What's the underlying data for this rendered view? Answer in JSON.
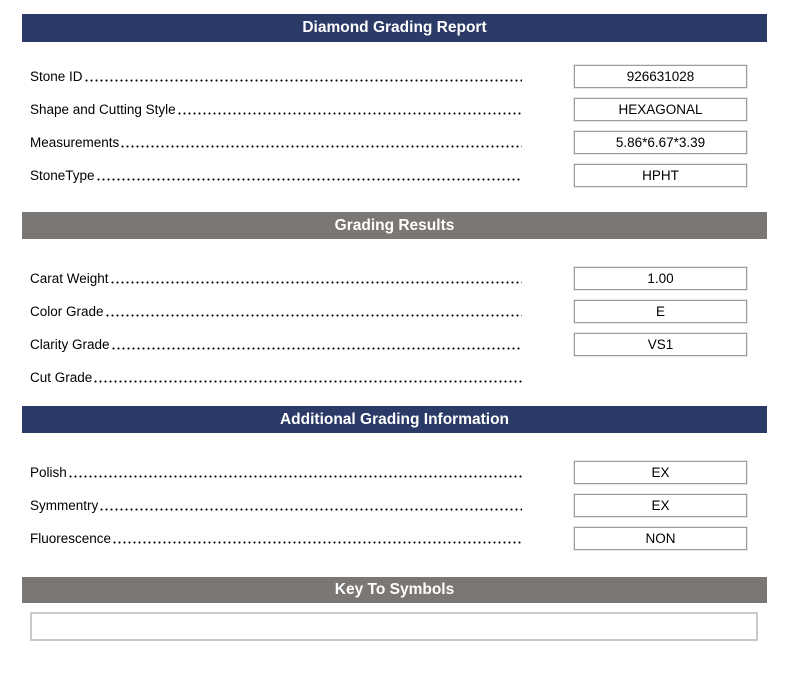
{
  "header": {
    "title": "Diamond Grading Report"
  },
  "stone_info": {
    "fields": [
      {
        "label": "Stone ID",
        "value": "926631028"
      },
      {
        "label": "Shape and Cutting Style",
        "value": "HEXAGONAL"
      },
      {
        "label": "Measurements",
        "value": "5.86*6.67*3.39"
      },
      {
        "label": "StoneType",
        "value": "HPHT"
      }
    ]
  },
  "grading_results": {
    "heading": "Grading Results",
    "fields": [
      {
        "label": "Carat Weight",
        "value": "1.00"
      },
      {
        "label": "Color Grade",
        "value": "E"
      },
      {
        "label": "Clarity Grade",
        "value": "VS1"
      },
      {
        "label": "Cut Grade",
        "value": ""
      }
    ]
  },
  "additional_info": {
    "heading": "Additional Grading Information",
    "fields": [
      {
        "label": "Polish",
        "value": "EX"
      },
      {
        "label": "Symmentry",
        "value": "EX"
      },
      {
        "label": "Fluorescence",
        "value": "NON"
      }
    ]
  },
  "key_to_symbols": {
    "heading": "Key To Symbols",
    "content": ""
  },
  "colors": {
    "header_navy": "#2B3A67",
    "header_gray": "#7B7774",
    "field_box_border": "#9A9A9A",
    "key_box_border": "#C9C9C9"
  }
}
